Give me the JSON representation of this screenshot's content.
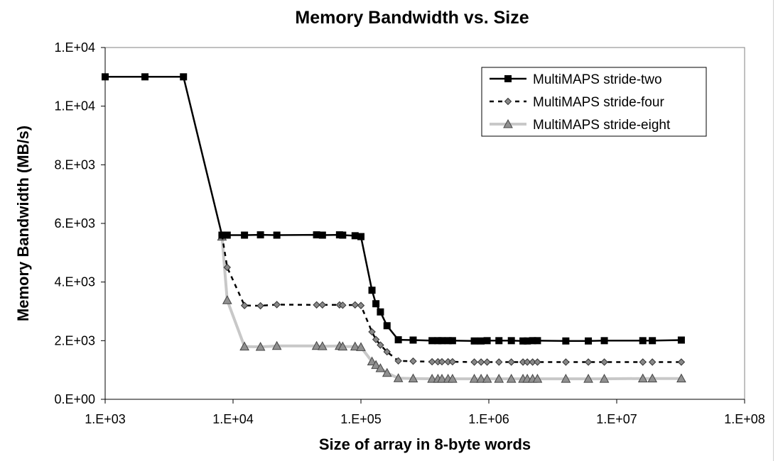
{
  "chart_data": {
    "type": "line",
    "title": "Memory Bandwidth vs. Size",
    "xlabel": "Size of array in 8-byte words",
    "ylabel": "Memory Bandwidth (MB/s)",
    "x_scale": "log",
    "xlim": [
      1000,
      100000000
    ],
    "ylim": [
      0,
      12000
    ],
    "x_ticks": [
      1000,
      10000,
      100000,
      1000000,
      10000000,
      100000000
    ],
    "x_tick_labels": [
      "1.E+03",
      "1.E+04",
      "1.E+05",
      "1.E+06",
      "1.E+07",
      "1.E+08"
    ],
    "y_ticks": [
      0,
      2000,
      4000,
      6000,
      8000,
      10000,
      12000
    ],
    "y_tick_labels": [
      "0.E+00",
      "2.E+03",
      "4.E+03",
      "6.E+03",
      "8.E+03",
      "1.E+04",
      "1.E+04"
    ],
    "grid": false,
    "legend_position": "top-right",
    "series": [
      {
        "name": "MultiMAPS stride-two",
        "color": "#000000",
        "marker": "square",
        "line_style": "solid",
        "points": [
          [
            1000,
            11000
          ],
          [
            2048,
            11000
          ],
          [
            4096,
            11000
          ],
          [
            8192,
            5600
          ],
          [
            9000,
            5600
          ],
          [
            12288,
            5600
          ],
          [
            16384,
            5610
          ],
          [
            22000,
            5600
          ],
          [
            45000,
            5610
          ],
          [
            50000,
            5600
          ],
          [
            68000,
            5610
          ],
          [
            72000,
            5600
          ],
          [
            90000,
            5580
          ],
          [
            100000,
            5550
          ],
          [
            122000,
            3720
          ],
          [
            131000,
            3260
          ],
          [
            142000,
            2980
          ],
          [
            160000,
            2510
          ],
          [
            196000,
            2030
          ],
          [
            256000,
            2020
          ],
          [
            360000,
            2000
          ],
          [
            400000,
            2000
          ],
          [
            430000,
            2000
          ],
          [
            480000,
            2000
          ],
          [
            520000,
            2000
          ],
          [
            770000,
            1990
          ],
          [
            870000,
            1990
          ],
          [
            970000,
            2000
          ],
          [
            1200000,
            2000
          ],
          [
            1500000,
            2000
          ],
          [
            1850000,
            1990
          ],
          [
            2000000,
            1990
          ],
          [
            2200000,
            2000
          ],
          [
            2400000,
            2000
          ],
          [
            4000000,
            1990
          ],
          [
            6000000,
            1990
          ],
          [
            8000000,
            2000
          ],
          [
            16000000,
            2000
          ],
          [
            19000000,
            2000
          ],
          [
            32000000,
            2020
          ]
        ]
      },
      {
        "name": "MultiMAPS stride-four",
        "color": "#000000",
        "marker_fill": "#888888",
        "marker": "diamond",
        "line_style": "dashed",
        "points": [
          [
            8192,
            5600
          ],
          [
            9000,
            4500
          ],
          [
            12288,
            3200
          ],
          [
            16384,
            3190
          ],
          [
            22000,
            3230
          ],
          [
            45000,
            3220
          ],
          [
            50000,
            3220
          ],
          [
            68000,
            3220
          ],
          [
            72000,
            3210
          ],
          [
            90000,
            3220
          ],
          [
            100000,
            3200
          ],
          [
            122000,
            2300
          ],
          [
            131000,
            2040
          ],
          [
            142000,
            1850
          ],
          [
            160000,
            1620
          ],
          [
            196000,
            1310
          ],
          [
            256000,
            1300
          ],
          [
            360000,
            1280
          ],
          [
            400000,
            1280
          ],
          [
            430000,
            1280
          ],
          [
            480000,
            1280
          ],
          [
            520000,
            1280
          ],
          [
            770000,
            1270
          ],
          [
            870000,
            1270
          ],
          [
            970000,
            1270
          ],
          [
            1200000,
            1270
          ],
          [
            1500000,
            1270
          ],
          [
            1850000,
            1270
          ],
          [
            2000000,
            1270
          ],
          [
            2200000,
            1270
          ],
          [
            2400000,
            1270
          ],
          [
            4000000,
            1270
          ],
          [
            6000000,
            1270
          ],
          [
            8000000,
            1270
          ],
          [
            16000000,
            1270
          ],
          [
            19000000,
            1270
          ],
          [
            32000000,
            1270
          ]
        ]
      },
      {
        "name": "MultiMAPS stride-eight",
        "color": "#c8c8c8",
        "marker_fill": "#909090",
        "marker": "triangle",
        "line_style": "solid",
        "points": [
          [
            8192,
            5550
          ],
          [
            9000,
            3380
          ],
          [
            12288,
            1800
          ],
          [
            16384,
            1790
          ],
          [
            22000,
            1820
          ],
          [
            45000,
            1820
          ],
          [
            50000,
            1810
          ],
          [
            68000,
            1820
          ],
          [
            72000,
            1800
          ],
          [
            90000,
            1800
          ],
          [
            100000,
            1780
          ],
          [
            122000,
            1290
          ],
          [
            131000,
            1170
          ],
          [
            142000,
            1060
          ],
          [
            160000,
            900
          ],
          [
            196000,
            720
          ],
          [
            256000,
            710
          ],
          [
            360000,
            700
          ],
          [
            400000,
            700
          ],
          [
            430000,
            700
          ],
          [
            480000,
            700
          ],
          [
            520000,
            700
          ],
          [
            770000,
            700
          ],
          [
            870000,
            700
          ],
          [
            970000,
            700
          ],
          [
            1200000,
            700
          ],
          [
            1500000,
            700
          ],
          [
            1850000,
            700
          ],
          [
            2000000,
            700
          ],
          [
            2200000,
            700
          ],
          [
            2400000,
            700
          ],
          [
            4000000,
            700
          ],
          [
            6000000,
            700
          ],
          [
            8000000,
            700
          ],
          [
            16000000,
            710
          ],
          [
            19000000,
            710
          ],
          [
            32000000,
            710
          ]
        ]
      }
    ]
  }
}
